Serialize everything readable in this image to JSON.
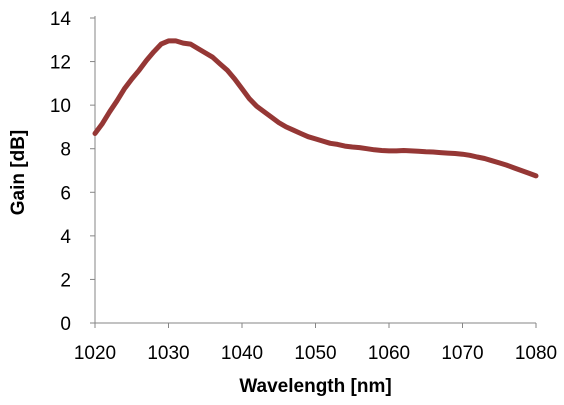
{
  "chart_data": {
    "type": "line",
    "title": "",
    "xlabel": "Wavelength [nm]",
    "ylabel": "Gain [dB]",
    "xlim": [
      1020,
      1080
    ],
    "ylim": [
      0,
      14
    ],
    "x_ticks": [
      1020,
      1030,
      1040,
      1050,
      1060,
      1070,
      1080
    ],
    "y_ticks": [
      0,
      2,
      4,
      6,
      8,
      10,
      12,
      14
    ],
    "grid": false,
    "legend": "none",
    "series": [
      {
        "color": "#953735",
        "x": [
          1020,
          1021,
          1022,
          1023,
          1024,
          1025,
          1026,
          1027,
          1028,
          1029,
          1030,
          1031,
          1032,
          1033,
          1034,
          1035,
          1036,
          1037,
          1038,
          1039,
          1040,
          1041,
          1042,
          1043,
          1044,
          1045,
          1046,
          1047,
          1048,
          1049,
          1050,
          1051,
          1052,
          1053,
          1054,
          1055,
          1056,
          1057,
          1058,
          1059,
          1060,
          1061,
          1062,
          1063,
          1064,
          1065,
          1066,
          1067,
          1068,
          1069,
          1070,
          1071,
          1072,
          1073,
          1074,
          1075,
          1076,
          1077,
          1078,
          1079,
          1080
        ],
        "y": [
          8.7,
          9.15,
          9.7,
          10.2,
          10.75,
          11.2,
          11.6,
          12.05,
          12.45,
          12.8,
          12.95,
          12.95,
          12.85,
          12.8,
          12.6,
          12.4,
          12.2,
          11.9,
          11.6,
          11.2,
          10.75,
          10.3,
          9.95,
          9.7,
          9.45,
          9.2,
          9.0,
          8.85,
          8.7,
          8.55,
          8.45,
          8.35,
          8.25,
          8.2,
          8.12,
          8.08,
          8.05,
          8.0,
          7.95,
          7.92,
          7.9,
          7.9,
          7.92,
          7.9,
          7.88,
          7.86,
          7.85,
          7.82,
          7.8,
          7.78,
          7.75,
          7.7,
          7.62,
          7.55,
          7.45,
          7.35,
          7.25,
          7.12,
          7.0,
          6.88,
          6.75
        ]
      }
    ]
  }
}
